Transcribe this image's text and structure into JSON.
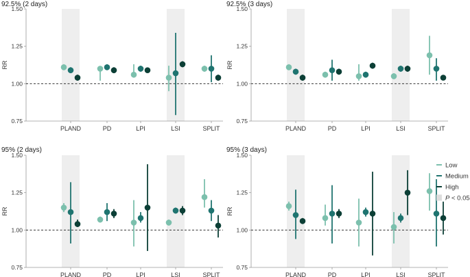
{
  "chart_data": {
    "type": "scatter",
    "description_style": "point estimates with confidence intervals",
    "categories": [
      "PLAND",
      "PD",
      "LPI",
      "LSI",
      "SPLIT"
    ],
    "series_names": [
      "Low",
      "Medium",
      "High"
    ],
    "ylabel": "RR",
    "yticks": [
      "0.75",
      "1.00",
      "1.25",
      "1.50"
    ],
    "ylim": [
      0.75,
      1.5
    ],
    "reference_line": 1.0,
    "colors": {
      "Low": "#7cc0ad",
      "Medium": "#1f7470",
      "High": "#0c3f36",
      "shade": "#eeeeee"
    },
    "panels": [
      {
        "title": "92.5% (2 days)",
        "shaded": [
          "PLAND",
          "LSI"
        ],
        "series": [
          {
            "name": "Low",
            "values": [
              1.11,
              1.1,
              1.06,
              1.04,
              1.1
            ],
            "lower": [
              1.09,
              1.02,
              1.04,
              0.95,
              1.08
            ],
            "upper": [
              1.13,
              1.11,
              1.13,
              1.12,
              1.12
            ]
          },
          {
            "name": "Medium",
            "values": [
              1.09,
              1.11,
              1.1,
              1.07,
              1.1
            ],
            "lower": [
              1.07,
              1.09,
              1.08,
              0.79,
              1.01
            ],
            "upper": [
              1.11,
              1.13,
              1.12,
              1.34,
              1.19
            ]
          },
          {
            "name": "High",
            "values": [
              1.04,
              1.09,
              1.09,
              1.13,
              1.04
            ],
            "lower": [
              1.02,
              1.07,
              1.08,
              1.11,
              1.02
            ],
            "upper": [
              1.06,
              1.11,
              1.1,
              1.15,
              1.06
            ]
          }
        ]
      },
      {
        "title": "92.5% (3 days)",
        "shaded": [
          "PLAND",
          "LSI"
        ],
        "series": [
          {
            "name": "Low",
            "values": [
              1.11,
              1.06,
              1.05,
              1.05,
              1.19
            ],
            "lower": [
              1.09,
              1.04,
              1.02,
              1.03,
              1.06
            ],
            "upper": [
              1.13,
              1.08,
              1.13,
              1.07,
              1.32
            ]
          },
          {
            "name": "Medium",
            "values": [
              1.08,
              1.09,
              1.06,
              1.1,
              1.1
            ],
            "lower": [
              1.06,
              1.02,
              1.04,
              1.08,
              1.02
            ],
            "upper": [
              1.1,
              1.16,
              1.08,
              1.12,
              1.17
            ]
          },
          {
            "name": "High",
            "values": [
              1.04,
              1.08,
              1.12,
              1.1,
              1.04
            ],
            "lower": [
              1.02,
              1.06,
              1.1,
              1.08,
              1.03
            ],
            "upper": [
              1.06,
              1.1,
              1.14,
              1.12,
              1.05
            ]
          }
        ]
      },
      {
        "title": "95% (2 days)",
        "shaded": [
          "PLAND",
          "LSI"
        ],
        "series": [
          {
            "name": "Low",
            "values": [
              1.15,
              1.07,
              1.05,
              1.05,
              1.22
            ],
            "lower": [
              1.12,
              1.05,
              0.89,
              1.03,
              1.15
            ],
            "upper": [
              1.18,
              1.09,
              1.2,
              1.07,
              1.34
            ]
          },
          {
            "name": "Medium",
            "values": [
              1.12,
              1.12,
              1.08,
              1.13,
              1.13
            ],
            "lower": [
              0.91,
              1.06,
              1.05,
              1.11,
              1.06
            ],
            "upper": [
              1.32,
              1.18,
              1.12,
              1.15,
              1.2
            ]
          },
          {
            "name": "High",
            "values": [
              1.04,
              1.11,
              1.15,
              1.13,
              1.03
            ],
            "lower": [
              1.02,
              1.08,
              0.86,
              1.1,
              0.95
            ],
            "upper": [
              1.07,
              1.14,
              1.44,
              1.16,
              1.1
            ]
          }
        ]
      },
      {
        "title": "95% (3 days)",
        "shaded": [
          "PLAND",
          "LSI"
        ],
        "series": [
          {
            "name": "Low",
            "values": [
              1.16,
              1.08,
              1.05,
              1.02,
              1.26
            ],
            "lower": [
              1.13,
              1.03,
              0.89,
              0.91,
              1.13
            ],
            "upper": [
              1.19,
              1.17,
              1.21,
              1.12,
              1.38
            ]
          },
          {
            "name": "Medium",
            "values": [
              1.1,
              1.11,
              1.12,
              1.08,
              1.11
            ],
            "lower": [
              0.94,
              0.91,
              1.09,
              1.05,
              0.89
            ],
            "upper": [
              1.27,
              1.3,
              1.15,
              1.11,
              1.34
            ]
          },
          {
            "name": "High",
            "values": [
              1.06,
              1.11,
              1.11,
              1.25,
              1.08
            ],
            "lower": [
              1.04,
              1.08,
              0.83,
              1.1,
              0.97
            ],
            "upper": [
              1.08,
              1.14,
              1.39,
              1.4,
              1.19
            ]
          }
        ]
      }
    ],
    "legend": {
      "entries": [
        "Low",
        "Medium",
        "High"
      ],
      "shade_label_italic": "P",
      "shade_label_rest": " < 0.05",
      "placement": "right"
    }
  }
}
